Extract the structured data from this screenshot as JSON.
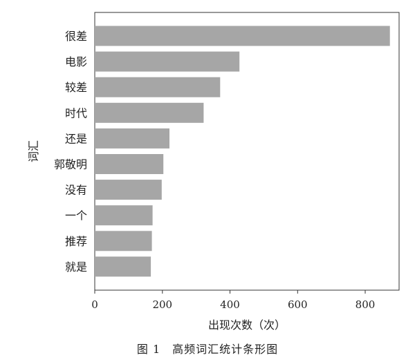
{
  "chart_data": {
    "type": "bar",
    "orientation": "horizontal",
    "categories": [
      "很差",
      "电影",
      "较差",
      "时代",
      "还是",
      "郭敬明",
      "没有",
      "一个",
      "推荐",
      "就是"
    ],
    "values": [
      873,
      428,
      371,
      322,
      221,
      203,
      198,
      171,
      169,
      166
    ],
    "xlabel": "出现次数（次）",
    "ylabel": "词汇",
    "xlim": [
      0,
      900
    ],
    "xticks": [
      0,
      200,
      400,
      600,
      800
    ],
    "grid": false,
    "bar_color": "#a6a6a6"
  },
  "caption": "图 1　高频词汇统计条形图"
}
